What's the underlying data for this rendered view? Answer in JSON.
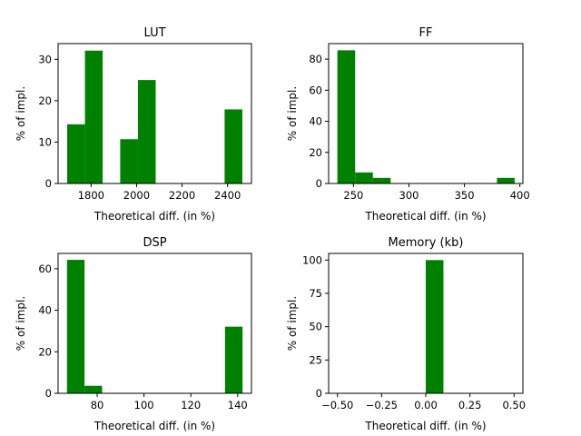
{
  "colors": {
    "bar": "#008000",
    "axis": "#000000",
    "background": "#ffffff"
  },
  "chart_data": [
    {
      "type": "bar",
      "title": "LUT",
      "xlabel": "Theoretical diff. (in %)",
      "ylabel": "% of impl.",
      "xlim": [
        1655,
        2505
      ],
      "ylim": [
        0,
        33.8
      ],
      "xticks": [
        1800,
        2000,
        2200,
        2400
      ],
      "xtick_labels": [
        "1800",
        "2000",
        "2200",
        "2400"
      ],
      "yticks": [
        0,
        10,
        20,
        30
      ],
      "ytick_labels": [
        "0",
        "10",
        "20",
        "30"
      ],
      "bins": [
        {
          "x0": 1695,
          "x1": 1773,
          "value": 14.3
        },
        {
          "x0": 1773,
          "x1": 1851,
          "value": 32.1
        },
        {
          "x0": 1928,
          "x1": 2006,
          "value": 10.7
        },
        {
          "x0": 2006,
          "x1": 2084,
          "value": 25.0
        },
        {
          "x0": 2387,
          "x1": 2465,
          "value": 17.9
        }
      ]
    },
    {
      "type": "bar",
      "title": "FF",
      "xlabel": "Theoretical diff. (in %)",
      "ylabel": "% of impl.",
      "xlim": [
        227.6,
        402.7
      ],
      "ylim": [
        0,
        90
      ],
      "xticks": [
        250,
        300,
        350,
        400
      ],
      "xtick_labels": [
        "250",
        "300",
        "350",
        "400"
      ],
      "yticks": [
        0,
        20,
        40,
        60,
        80
      ],
      "ytick_labels": [
        "0",
        "20",
        "40",
        "60",
        "80"
      ],
      "bins": [
        {
          "x0": 235.5,
          "x1": 251.5,
          "value": 85.7
        },
        {
          "x0": 251.5,
          "x1": 267.5,
          "value": 7.1
        },
        {
          "x0": 267.5,
          "x1": 283.5,
          "value": 3.6
        },
        {
          "x0": 379.3,
          "x1": 395.3,
          "value": 3.6
        }
      ]
    },
    {
      "type": "bar",
      "title": "DSP",
      "xlabel": "Theoretical diff. (in %)",
      "ylabel": "% of impl.",
      "xlim": [
        63.3,
        145.9
      ],
      "ylim": [
        0,
        67.4
      ],
      "xticks": [
        80,
        100,
        120,
        140
      ],
      "xtick_labels": [
        "80",
        "100",
        "120",
        "140"
      ],
      "yticks": [
        0,
        20,
        40,
        60
      ],
      "ytick_labels": [
        "0",
        "20",
        "40",
        "60"
      ],
      "bins": [
        {
          "x0": 67.1,
          "x1": 74.6,
          "value": 64.3
        },
        {
          "x0": 74.6,
          "x1": 82.1,
          "value": 3.6
        },
        {
          "x0": 134.6,
          "x1": 142.1,
          "value": 32.1
        }
      ]
    },
    {
      "type": "bar",
      "title": "Memory (kb)",
      "xlabel": "Theoretical diff. (in %)",
      "ylabel": "% of impl.",
      "xlim": [
        -0.55,
        0.55
      ],
      "ylim": [
        0,
        105
      ],
      "xticks": [
        -0.5,
        -0.25,
        0.0,
        0.25,
        0.5
      ],
      "xtick_labels": [
        "−0.50",
        "−0.25",
        "0.00",
        "0.25",
        "0.50"
      ],
      "yticks": [
        0,
        25,
        50,
        75,
        100
      ],
      "ytick_labels": [
        "0",
        "25",
        "50",
        "75",
        "100"
      ],
      "bins": [
        {
          "x0": 0.0,
          "x1": 0.1,
          "value": 100
        }
      ]
    }
  ]
}
